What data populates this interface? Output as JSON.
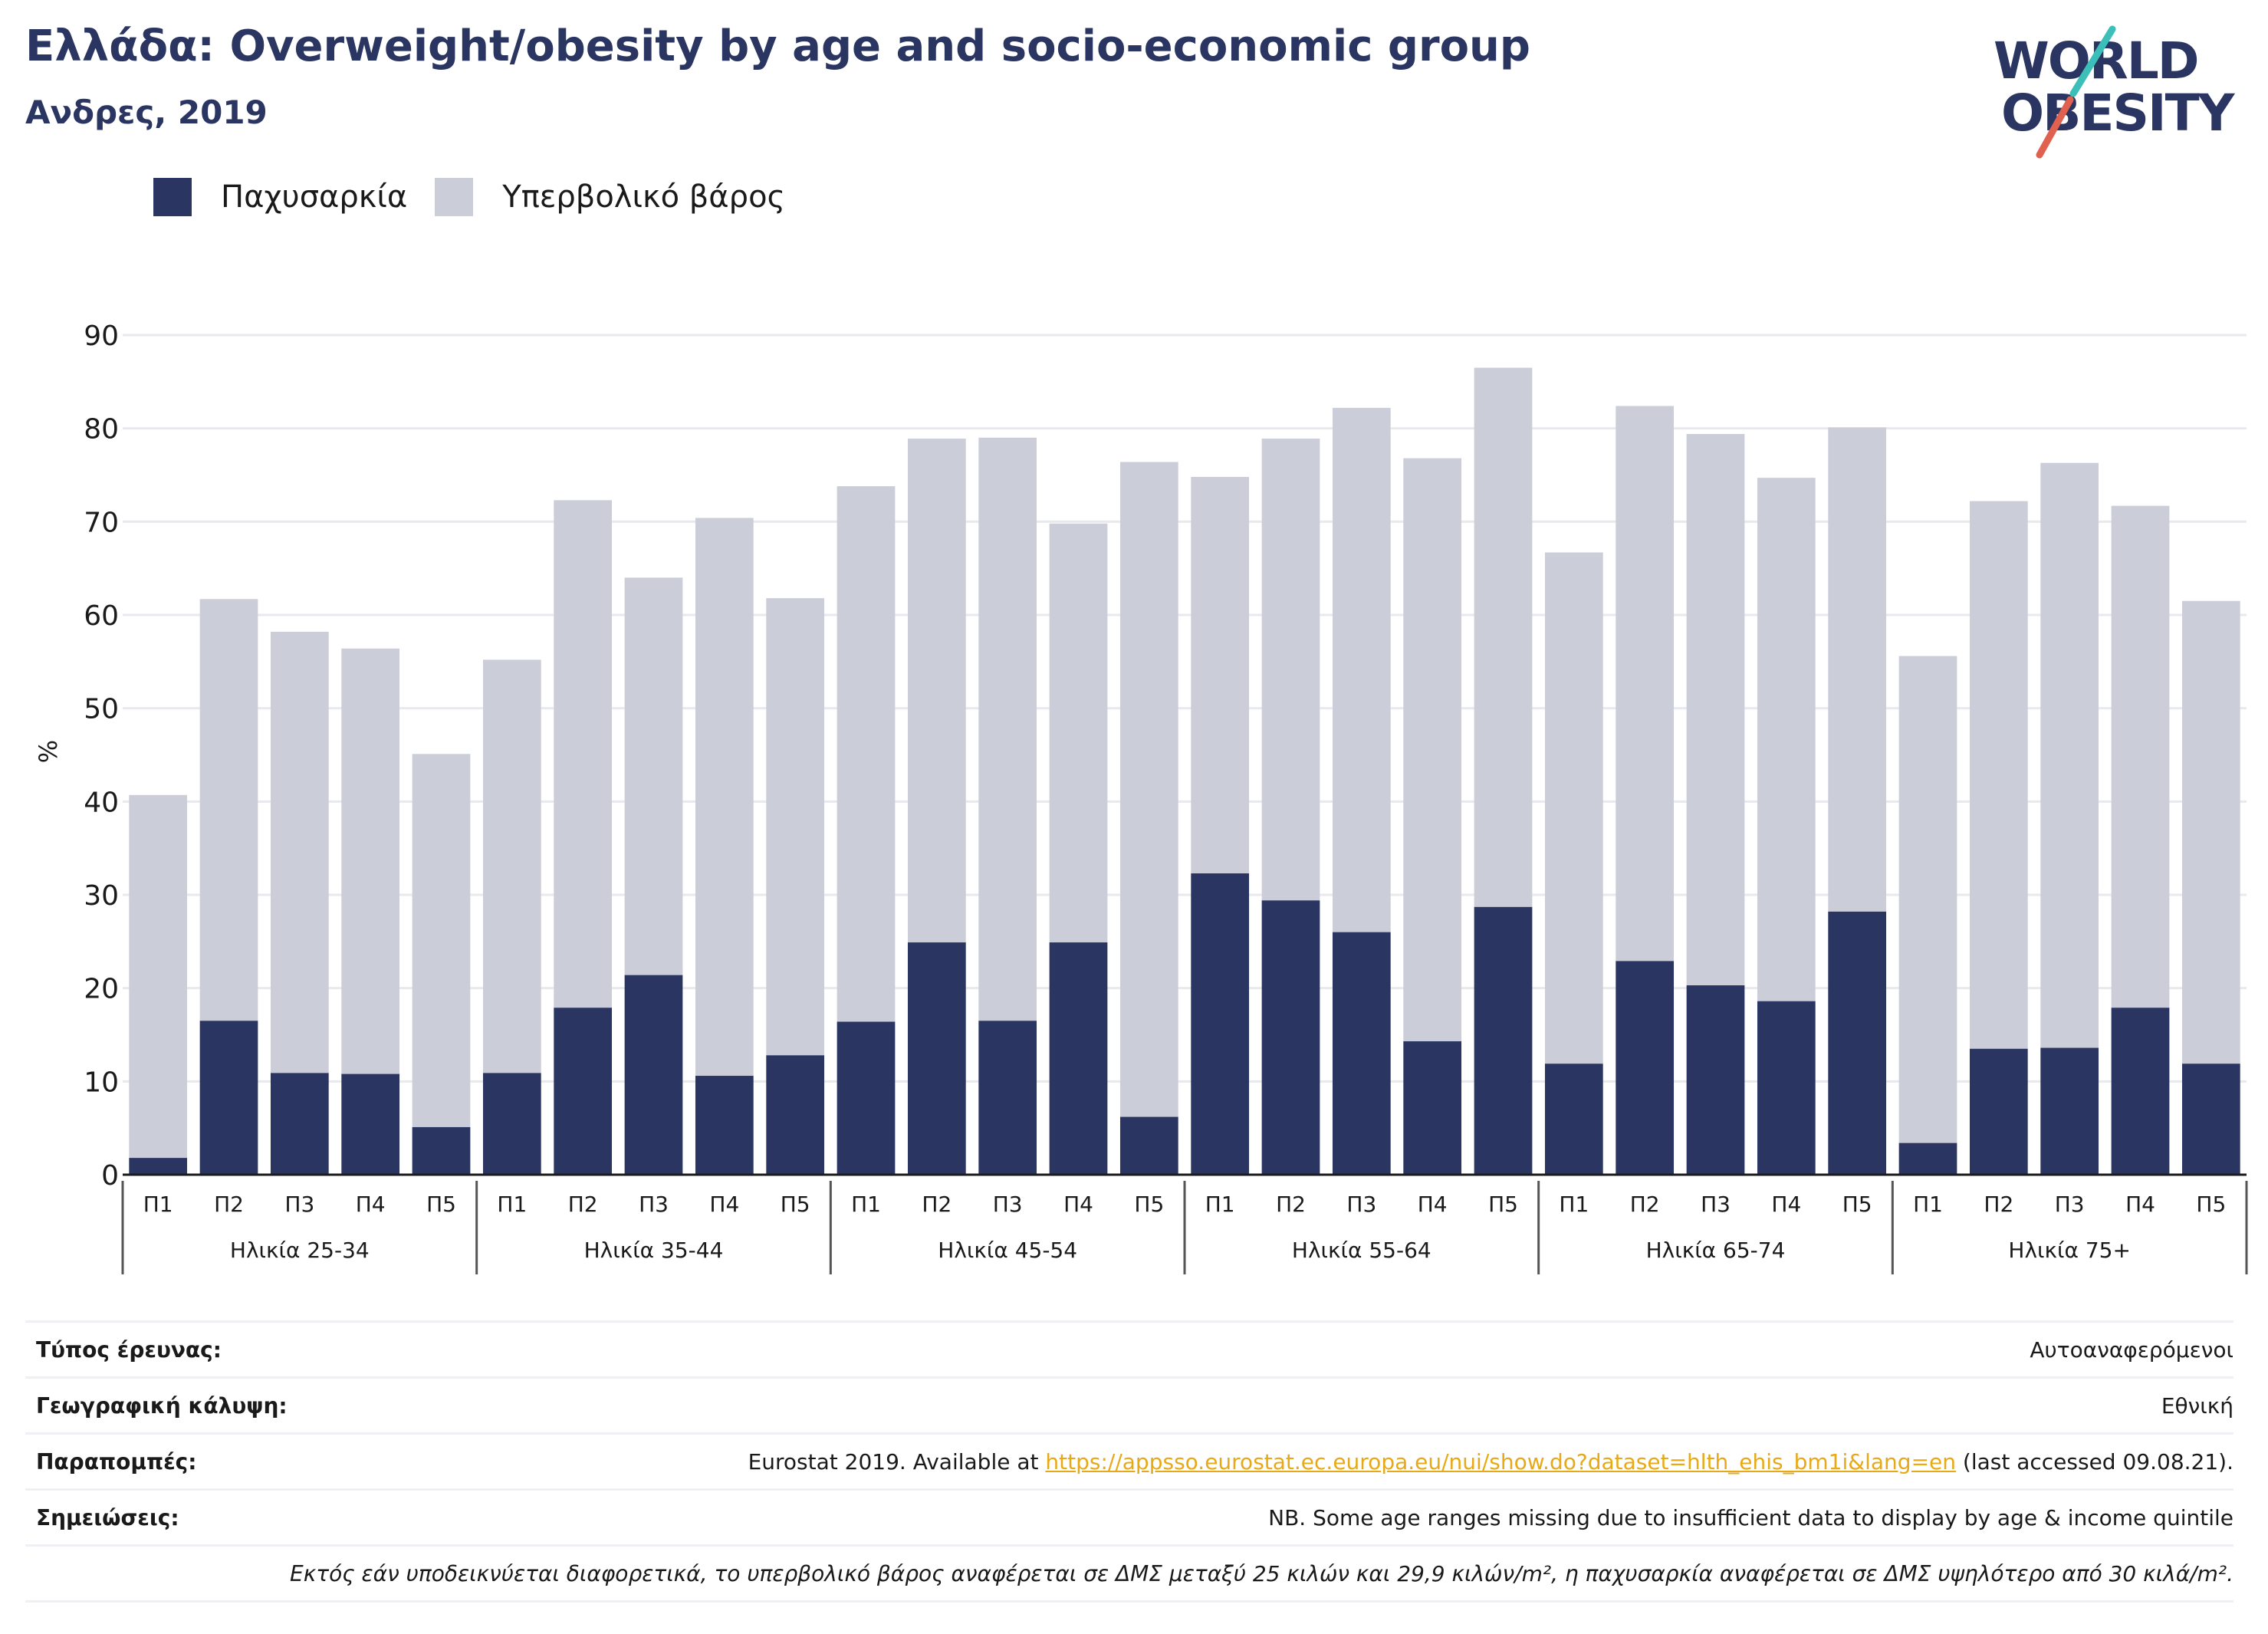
{
  "header": {
    "title": "Ελλάδα: Overweight/obesity by age and socio-economic group",
    "subtitle": "Ανδρες, 2019"
  },
  "logo": {
    "line1": "WORLD",
    "line2": "OBESITY",
    "colors": {
      "navy": "#2a3561",
      "teal": "#3cbfb8",
      "coral": "#e0614f"
    }
  },
  "legend": {
    "obesity_label": "Παχυσαρκία",
    "overweight_label": "Υπερβολικό βάρος"
  },
  "colors": {
    "obesity": "#2a3561",
    "overweight": "#cbcdd8",
    "grid": "#e8e9ef",
    "axis": "#1a1a1a"
  },
  "chart_data": {
    "type": "bar",
    "stacked": true,
    "ylabel": "%",
    "ylim": [
      0,
      90
    ],
    "yticks": [
      0,
      10,
      20,
      30,
      40,
      50,
      60,
      70,
      80,
      90
    ],
    "grid": true,
    "legend_position": "top-left",
    "categories": [
      "Π1",
      "Π2",
      "Π3",
      "Π4",
      "Π5",
      "Π1",
      "Π2",
      "Π3",
      "Π4",
      "Π5",
      "Π1",
      "Π2",
      "Π3",
      "Π4",
      "Π5",
      "Π1",
      "Π2",
      "Π3",
      "Π4",
      "Π5",
      "Π1",
      "Π2",
      "Π3",
      "Π4",
      "Π5",
      "Π1",
      "Π2",
      "Π3",
      "Π4",
      "Π5"
    ],
    "groups": [
      "Ηλικία 25-34",
      "Ηλικία 35-44",
      "Ηλικία 45-54",
      "Ηλικία 55-64",
      "Ηλικία 65-74",
      "Ηλικία 75+"
    ],
    "series": [
      {
        "name": "Παχυσαρκία",
        "values": [
          1.8,
          16.5,
          10.9,
          10.8,
          5.1,
          10.9,
          17.9,
          21.4,
          10.6,
          12.8,
          16.4,
          24.9,
          16.5,
          24.9,
          6.2,
          32.3,
          29.4,
          26.0,
          14.3,
          28.7,
          11.9,
          22.9,
          20.3,
          18.6,
          28.2,
          3.4,
          13.5,
          13.6,
          17.9,
          11.9
        ]
      },
      {
        "name": "Υπερβολικό βάρος",
        "values": [
          38.9,
          45.2,
          47.3,
          45.6,
          40.0,
          44.3,
          54.4,
          42.6,
          59.8,
          49.0,
          57.4,
          54.0,
          62.5,
          44.9,
          70.2,
          42.5,
          49.5,
          56.2,
          62.5,
          57.8,
          54.8,
          59.5,
          59.1,
          56.1,
          51.9,
          52.2,
          58.7,
          62.7,
          53.8,
          49.6
        ]
      }
    ]
  },
  "meta": {
    "survey_label": "Τύπος έρευνας:",
    "survey_value": "Αυτοαναφερόμενοι",
    "coverage_label": "Γεωγραφική κάλυψη:",
    "coverage_value": "Εθνική",
    "refs_label": "Παραπομπές:",
    "refs_prefix": "Eurostat 2019. Available at ",
    "refs_link": "https://appsso.eurostat.ec.europa.eu/nui/show.do?dataset=hlth_ehis_bm1i&lang=en",
    "refs_suffix": " (last accessed 09.08.21).",
    "notes_label": "Σημειώσεις:",
    "notes_value": "NB. Some age ranges missing due to insufficient data to display by age & income quintile",
    "definition": "Εκτός εάν υποδεικνύεται διαφορετικά, το υπερβολικό βάρος αναφέρεται σε ΔΜΣ μεταξύ 25 κιλών και 29,9 κιλών/m², η παχυσαρκία αναφέρεται σε ΔΜΣ υψηλότερο από 30 κιλά/m²."
  }
}
